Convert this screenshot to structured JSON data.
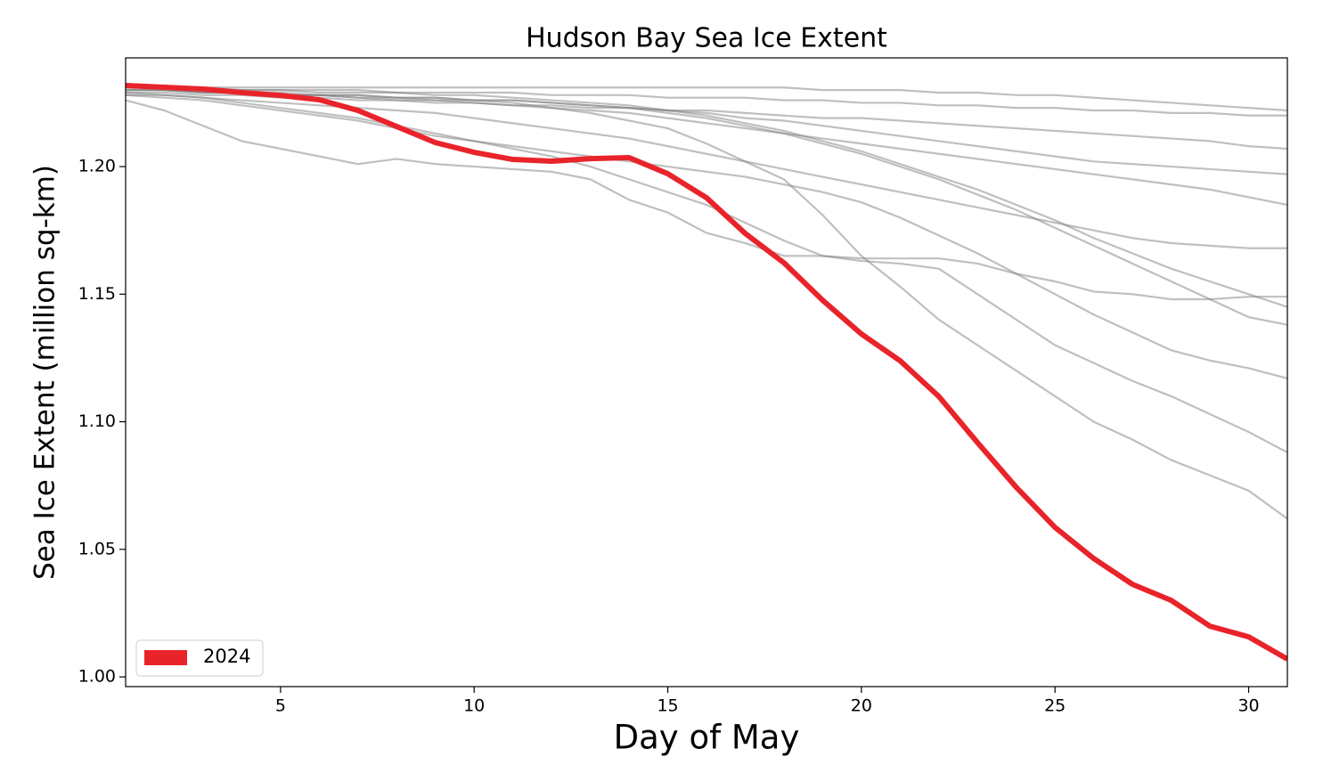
{
  "chart_data": {
    "type": "line",
    "title": "Hudson Bay Sea Ice Extent",
    "xlabel": "Day of May",
    "ylabel": "Sea Ice Extent (million sq-km)",
    "x": [
      1,
      2,
      3,
      4,
      5,
      6,
      7,
      8,
      9,
      10,
      11,
      12,
      13,
      14,
      15,
      16,
      17,
      18,
      19,
      20,
      21,
      22,
      23,
      24,
      25,
      26,
      27,
      28,
      29,
      30,
      31
    ],
    "xlim": [
      1,
      31
    ],
    "xticks": [
      5,
      10,
      15,
      20,
      25,
      30
    ],
    "ylim": [
      0.9962,
      1.2426
    ],
    "yticks": [
      {
        "value": 1.0,
        "label": "1.00"
      },
      1.05,
      {
        "value": 1.1,
        "label": "1.10"
      },
      1.15,
      {
        "value": 1.2,
        "label": "1.20"
      }
    ],
    "legend": "lower left",
    "series": [
      {
        "color": "#808080",
        "values": [
          1.231,
          1.231,
          1.231,
          1.231,
          1.231,
          1.231,
          1.231,
          1.231,
          1.231,
          1.231,
          1.231,
          1.231,
          1.231,
          1.231,
          1.231,
          1.231,
          1.231,
          1.231,
          1.23,
          1.23,
          1.23,
          1.229,
          1.229,
          1.228,
          1.228,
          1.227,
          1.226,
          1.225,
          1.224,
          1.223,
          1.222
        ]
      },
      {
        "color": "#808080",
        "values": [
          1.229,
          1.229,
          1.228,
          1.228,
          1.227,
          1.227,
          1.226,
          1.226,
          1.225,
          1.225,
          1.224,
          1.224,
          1.223,
          1.223,
          1.222,
          1.222,
          1.221,
          1.22,
          1.219,
          1.219,
          1.218,
          1.217,
          1.216,
          1.215,
          1.214,
          1.213,
          1.212,
          1.211,
          1.21,
          1.208,
          1.207
        ]
      },
      {
        "color": "#808080",
        "values": [
          1.23,
          1.23,
          1.229,
          1.229,
          1.228,
          1.228,
          1.227,
          1.226,
          1.226,
          1.225,
          1.224,
          1.223,
          1.222,
          1.221,
          1.219,
          1.217,
          1.215,
          1.213,
          1.211,
          1.209,
          1.207,
          1.205,
          1.203,
          1.201,
          1.199,
          1.197,
          1.195,
          1.193,
          1.191,
          1.188,
          1.185
        ]
      },
      {
        "color": "#808080",
        "values": [
          1.231,
          1.231,
          1.23,
          1.23,
          1.23,
          1.229,
          1.229,
          1.229,
          1.228,
          1.228,
          1.227,
          1.226,
          1.225,
          1.224,
          1.222,
          1.22,
          1.217,
          1.214,
          1.21,
          1.206,
          1.201,
          1.196,
          1.191,
          1.185,
          1.179,
          1.172,
          1.166,
          1.16,
          1.155,
          1.15,
          1.145
        ]
      },
      {
        "color": "#808080",
        "values": [
          1.23,
          1.23,
          1.229,
          1.229,
          1.228,
          1.228,
          1.227,
          1.227,
          1.226,
          1.226,
          1.225,
          1.223,
          1.221,
          1.218,
          1.215,
          1.209,
          1.202,
          1.195,
          1.181,
          1.165,
          1.153,
          1.14,
          1.13,
          1.12,
          1.11,
          1.1,
          1.093,
          1.085,
          1.079,
          1.073,
          1.062
        ]
      },
      {
        "color": "#808080",
        "values": [
          1.229,
          1.228,
          1.227,
          1.225,
          1.223,
          1.221,
          1.219,
          1.216,
          1.213,
          1.21,
          1.207,
          1.204,
          1.2,
          1.195,
          1.19,
          1.185,
          1.178,
          1.171,
          1.165,
          1.163,
          1.162,
          1.16,
          1.15,
          1.14,
          1.13,
          1.123,
          1.116,
          1.11,
          1.103,
          1.096,
          1.088
        ]
      },
      {
        "color": "#808080",
        "values": [
          1.226,
          1.222,
          1.216,
          1.21,
          1.207,
          1.204,
          1.201,
          1.203,
          1.201,
          1.2,
          1.199,
          1.198,
          1.195,
          1.187,
          1.182,
          1.174,
          1.17,
          1.165,
          1.165,
          1.164,
          1.164,
          1.164,
          1.162,
          1.158,
          1.155,
          1.151,
          1.15,
          1.148,
          1.148,
          1.149,
          1.149
        ]
      },
      {
        "color": "#808080",
        "values": [
          1.228,
          1.227,
          1.226,
          1.224,
          1.222,
          1.22,
          1.218,
          1.215,
          1.212,
          1.21,
          1.208,
          1.206,
          1.204,
          1.202,
          1.2,
          1.198,
          1.196,
          1.193,
          1.19,
          1.186,
          1.18,
          1.173,
          1.166,
          1.158,
          1.15,
          1.142,
          1.135,
          1.128,
          1.124,
          1.121,
          1.117
        ]
      },
      {
        "color": "#808080",
        "values": [
          1.231,
          1.23,
          1.23,
          1.229,
          1.229,
          1.228,
          1.228,
          1.227,
          1.227,
          1.226,
          1.226,
          1.225,
          1.224,
          1.223,
          1.221,
          1.219,
          1.216,
          1.213,
          1.209,
          1.205,
          1.2,
          1.195,
          1.189,
          1.183,
          1.176,
          1.169,
          1.162,
          1.155,
          1.148,
          1.141,
          1.138
        ]
      },
      {
        "color": "#808080",
        "values": [
          1.23,
          1.23,
          1.229,
          1.229,
          1.228,
          1.228,
          1.228,
          1.227,
          1.227,
          1.226,
          1.226,
          1.225,
          1.224,
          1.223,
          1.222,
          1.221,
          1.219,
          1.218,
          1.216,
          1.214,
          1.212,
          1.21,
          1.208,
          1.206,
          1.204,
          1.202,
          1.201,
          1.2,
          1.199,
          1.198,
          1.197
        ]
      },
      {
        "color": "#808080",
        "values": [
          1.231,
          1.231,
          1.231,
          1.23,
          1.23,
          1.23,
          1.23,
          1.229,
          1.229,
          1.229,
          1.229,
          1.228,
          1.228,
          1.228,
          1.227,
          1.227,
          1.227,
          1.226,
          1.226,
          1.225,
          1.225,
          1.224,
          1.224,
          1.223,
          1.223,
          1.222,
          1.222,
          1.221,
          1.221,
          1.22,
          1.22
        ]
      },
      {
        "color": "#808080",
        "values": [
          1.228,
          1.228,
          1.227,
          1.226,
          1.225,
          1.224,
          1.223,
          1.222,
          1.221,
          1.219,
          1.217,
          1.215,
          1.213,
          1.211,
          1.208,
          1.205,
          1.202,
          1.199,
          1.196,
          1.193,
          1.19,
          1.187,
          1.184,
          1.181,
          1.178,
          1.175,
          1.172,
          1.17,
          1.169,
          1.168,
          1.168
        ]
      },
      {
        "name": "2024",
        "color": "#e8242a",
        "values": [
          1.2318,
          1.2311,
          1.2304,
          1.229,
          1.2279,
          1.2262,
          1.222,
          1.2157,
          1.2094,
          1.2056,
          1.2028,
          1.2021,
          1.2031,
          1.2035,
          1.1972,
          1.1878,
          1.1738,
          1.1623,
          1.1476,
          1.1344,
          1.1239,
          1.1099,
          1.0918,
          1.0743,
          1.0586,
          1.0464,
          1.0363,
          1.03,
          1.0199,
          1.0157,
          1.007
        ]
      }
    ]
  }
}
